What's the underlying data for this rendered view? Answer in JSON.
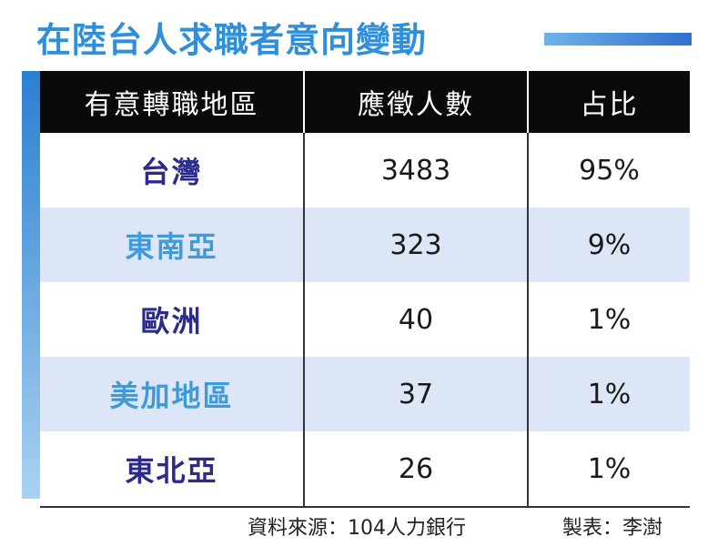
{
  "title": "在陸台人求職者意向變動",
  "colors": {
    "accent": "#2f8fd8",
    "region_dark": "#2c2a8a",
    "region_light": "#3f9ad8",
    "header_bg": "#0a0a0a",
    "stripe": "#dde6f6"
  },
  "chart_data": {
    "type": "table",
    "columns": [
      "有意轉職地區",
      "應徵人數",
      "占比"
    ],
    "rows": [
      {
        "region": "台灣",
        "count": "3483",
        "share": "95%"
      },
      {
        "region": "東南亞",
        "count": "323",
        "share": "9%"
      },
      {
        "region": "歐洲",
        "count": "40",
        "share": "1%"
      },
      {
        "region": "美加地區",
        "count": "37",
        "share": "1%"
      },
      {
        "region": "東北亞",
        "count": "26",
        "share": "1%"
      }
    ]
  },
  "footer": {
    "source": "資料來源：104人力銀行",
    "credit": "製表：李澍"
  }
}
